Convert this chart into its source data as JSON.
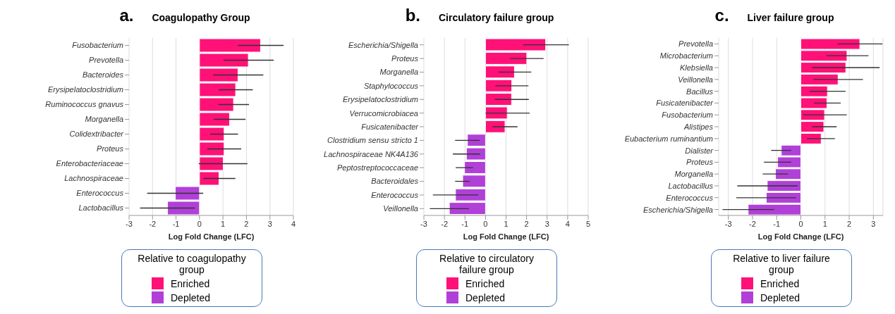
{
  "chart_data": [
    {
      "type": "bar",
      "orientation": "horizontal",
      "stacked": true,
      "title": "Coagulopathy Group",
      "annotations": [
        "a."
      ],
      "xlabel": "Log Fold Change (LFC)",
      "legend_title": "Relative to coagulopathy group",
      "legend": "bottom",
      "grid": "x",
      "categories": [
        "Fusobacterium",
        "Prevotella",
        "Bacteroides",
        "Erysipelatoclostridium",
        "Ruminococcus gnavus",
        "Morganella",
        "Colidextribacter",
        "Proteus",
        "Enterobacteriaceae",
        "Lachnospiraceae",
        "Enterococcus",
        "Lactobacillus"
      ],
      "xlim": [
        -3,
        4
      ],
      "xticks": [
        -3,
        -2,
        -1,
        0,
        1,
        2,
        3,
        4
      ],
      "series": [
        {
          "name": "Enriched",
          "color": "#ff1177",
          "values": [
            2.6,
            2.08,
            1.64,
            1.54,
            1.45,
            1.28,
            1.05,
            1.05,
            1.01,
            0.83,
            null,
            null
          ],
          "errors": [
            [
              1.64,
              3.58
            ],
            [
              1.02,
              3.16
            ],
            [
              0.58,
              2.72
            ],
            [
              0.82,
              2.27
            ],
            [
              0.81,
              2.11
            ],
            [
              0.6,
              1.96
            ],
            [
              0.46,
              1.64
            ],
            [
              0.33,
              1.78
            ],
            [
              -0.03,
              2.04
            ],
            [
              0.16,
              1.53
            ],
            null,
            null
          ]
        },
        {
          "name": "Depleted",
          "color": "#b040d8",
          "values": [
            null,
            null,
            null,
            null,
            null,
            null,
            null,
            null,
            null,
            null,
            -1.03,
            -1.36
          ],
          "errors": [
            null,
            null,
            null,
            null,
            null,
            null,
            null,
            null,
            null,
            null,
            [
              -2.23,
              0.16
            ],
            [
              -2.53,
              -0.19
            ]
          ]
        }
      ]
    },
    {
      "type": "bar",
      "orientation": "horizontal",
      "stacked": true,
      "title": "Circulatory failure group",
      "annotations": [
        "b."
      ],
      "xlabel": "Log Fold Change (LFC)",
      "legend_title": "Relative to circulatory failure group",
      "legend": "bottom",
      "grid": "x",
      "categories": [
        "Escherichia/Shigella",
        "Proteus",
        "Morganella",
        "Staphylococcus",
        "Erysipelatoclostridium",
        "Verrucomicrobiacea",
        "Fusicatenibacter",
        "Clostridium sensu stricto 1",
        "Lachnospiraceae NK4A136",
        "Peptostreptococcaceae",
        "Bacteroidales",
        "Enterococcus",
        "Veillonella"
      ],
      "xlim": [
        -3,
        5
      ],
      "xticks": [
        -3,
        -2,
        -1,
        0,
        1,
        2,
        3,
        4,
        5
      ],
      "series": [
        {
          "name": "Enriched",
          "color": "#ff1177",
          "values": [
            2.93,
            2.01,
            1.41,
            1.28,
            1.27,
            1.06,
            0.95,
            null,
            null,
            null,
            null,
            null,
            null
          ],
          "errors": [
            [
              1.83,
              4.06
            ],
            [
              1.19,
              2.83
            ],
            [
              0.63,
              2.23
            ],
            [
              0.48,
              2.09
            ],
            [
              0.45,
              2.11
            ],
            [
              0,
              2.15
            ],
            [
              0.34,
              1.56
            ],
            null,
            null,
            null,
            null,
            null,
            null
          ]
        },
        {
          "name": "Depleted",
          "color": "#b040d8",
          "values": [
            null,
            null,
            null,
            null,
            null,
            null,
            null,
            -0.88,
            -0.93,
            -1.02,
            -1.11,
            -1.46,
            -1.76
          ],
          "errors": [
            null,
            null,
            null,
            null,
            null,
            null,
            null,
            [
              -1.48,
              -0.28
            ],
            [
              -1.59,
              -0.27
            ],
            [
              -1.45,
              -0.61
            ],
            [
              -1.48,
              -0.76
            ],
            [
              -2.56,
              -0.35
            ],
            [
              -2.71,
              -0.81
            ]
          ]
        }
      ]
    },
    {
      "type": "bar",
      "orientation": "horizontal",
      "stacked": true,
      "title": "Liver failure group",
      "annotations": [
        "c."
      ],
      "xlabel": "Log Fold Change (LFC)",
      "legend_title": "Relative to liver failure group",
      "legend": "bottom",
      "grid": "x",
      "categories": [
        "Prevotella",
        "Microbacterium",
        "Klebsiella",
        "Veillonella",
        "Bacillus",
        "Fusicatenibacter",
        "Fusobacterium",
        "Alistipes",
        "Eubacterium ruminantium",
        "Dialister",
        "Proteus",
        "Morganella",
        "Lactobacillus",
        "Enterococcus",
        "Escherichia/Shigella"
      ],
      "xlim": [
        -3.4,
        3.4
      ],
      "xticks": [
        -3,
        -2,
        -1,
        0,
        1,
        2,
        3
      ],
      "series": [
        {
          "name": "Enriched",
          "color": "#ff1177",
          "values": [
            2.44,
            1.91,
            1.86,
            1.54,
            1.1,
            1.08,
            0.98,
            0.95,
            0.84,
            null,
            null,
            null,
            null,
            null,
            null
          ],
          "errors": [
            [
              1.51,
              3.38
            ],
            [
              1.05,
              2.8
            ],
            [
              0.46,
              3.26
            ],
            [
              0.52,
              2.57
            ],
            [
              0.36,
              1.85
            ],
            [
              0.54,
              1.65
            ],
            [
              0.09,
              1.9
            ],
            [
              0.46,
              1.48
            ],
            [
              0.25,
              1.41
            ],
            null,
            null,
            null,
            null,
            null,
            null
          ]
        },
        {
          "name": "Depleted",
          "color": "#b040d8",
          "values": [
            null,
            null,
            null,
            null,
            null,
            null,
            null,
            null,
            null,
            -0.81,
            -0.96,
            -1.05,
            -1.39,
            -1.43,
            -2.18
          ],
          "errors": [
            null,
            null,
            null,
            null,
            null,
            null,
            null,
            null,
            null,
            [
              -1.23,
              -0.4
            ],
            [
              -1.53,
              -0.4
            ],
            [
              -1.58,
              -0.53
            ],
            [
              -2.63,
              -0.13
            ],
            [
              -2.67,
              -0.2
            ],
            [
              -3.24,
              -1.1
            ]
          ]
        }
      ]
    }
  ]
}
